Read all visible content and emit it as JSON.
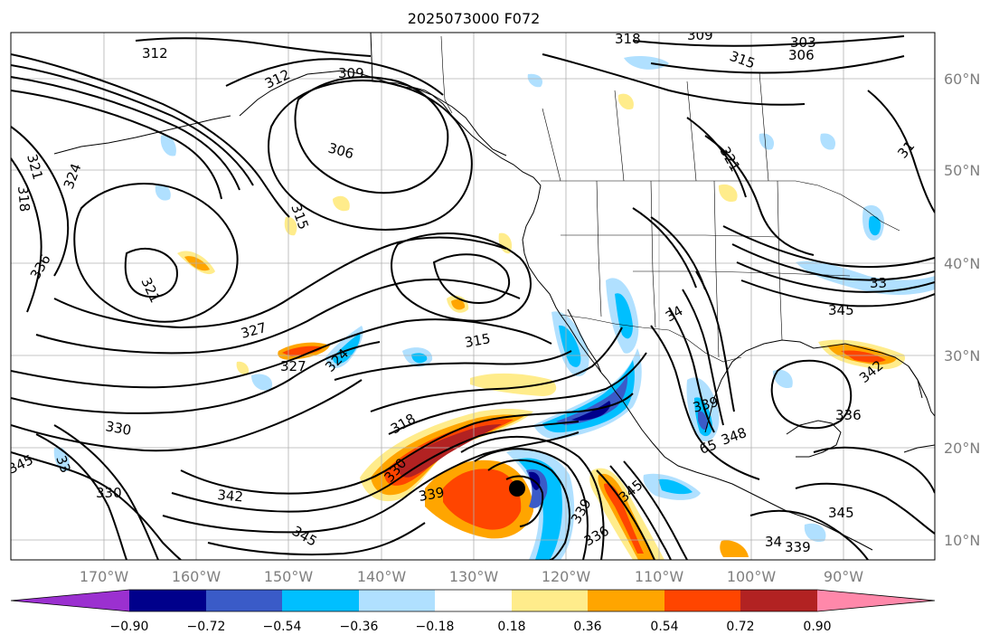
{
  "title": "2025073000 F072",
  "latitude_labels": [
    "60°N",
    "50°N",
    "40°N",
    "30°N",
    "20°N",
    "10°N"
  ],
  "longitude_labels": [
    "170°W",
    "160°W",
    "150°W",
    "140°W",
    "130°W",
    "120°W",
    "110°W",
    "100°W",
    "90°W"
  ],
  "colorbar": {
    "tick_labels": [
      "−0.90",
      "−0.72",
      "−0.54",
      "−0.36",
      "−0.18",
      "0.18",
      "0.36",
      "0.54",
      "0.72",
      "0.90"
    ],
    "colors": [
      "#9b30d0",
      "#00008b",
      "#3a5bc8",
      "#00bfff",
      "#b0e0ff",
      "#ffffff",
      "#ffec8b",
      "#ffa500",
      "#ff4500",
      "#b22222",
      "#ff88aa"
    ]
  },
  "contour_labels": {
    "c1": "312",
    "c2": "309",
    "c3": "312",
    "c4": "318",
    "c5": "309",
    "c6": "303",
    "c7": "306",
    "c8": "315",
    "c9": "321",
    "c10": "318",
    "c11": "324",
    "c12": "306",
    "c13": "315",
    "c14": "321",
    "c15": "336",
    "c16": "321",
    "c17": "327",
    "c18": "327",
    "c19": "324",
    "c20": "315",
    "c21": "330",
    "c22": "318",
    "c23": "330",
    "c24": "339",
    "c25": "33",
    "c26": "330",
    "c27": "345",
    "c28": "342",
    "c29": "345",
    "c30": "339",
    "c31": "345",
    "c32": "336",
    "c33": "34",
    "c34": "339",
    "c35": "65",
    "c36": "348",
    "c37": "345",
    "c38": "33",
    "c39": "342",
    "c40": "336",
    "c41": "345",
    "c42": "34",
    "c43": "339",
    "c44": "31"
  },
  "fill_colors": {
    "light_blue": "#b0e0ff",
    "blue": "#00bfff",
    "mid_blue": "#3a5bc8",
    "navy": "#00008b",
    "light_yellow": "#ffec8b",
    "orange": "#ffa500",
    "red_orange": "#ff4500",
    "dark_red": "#b22222"
  }
}
